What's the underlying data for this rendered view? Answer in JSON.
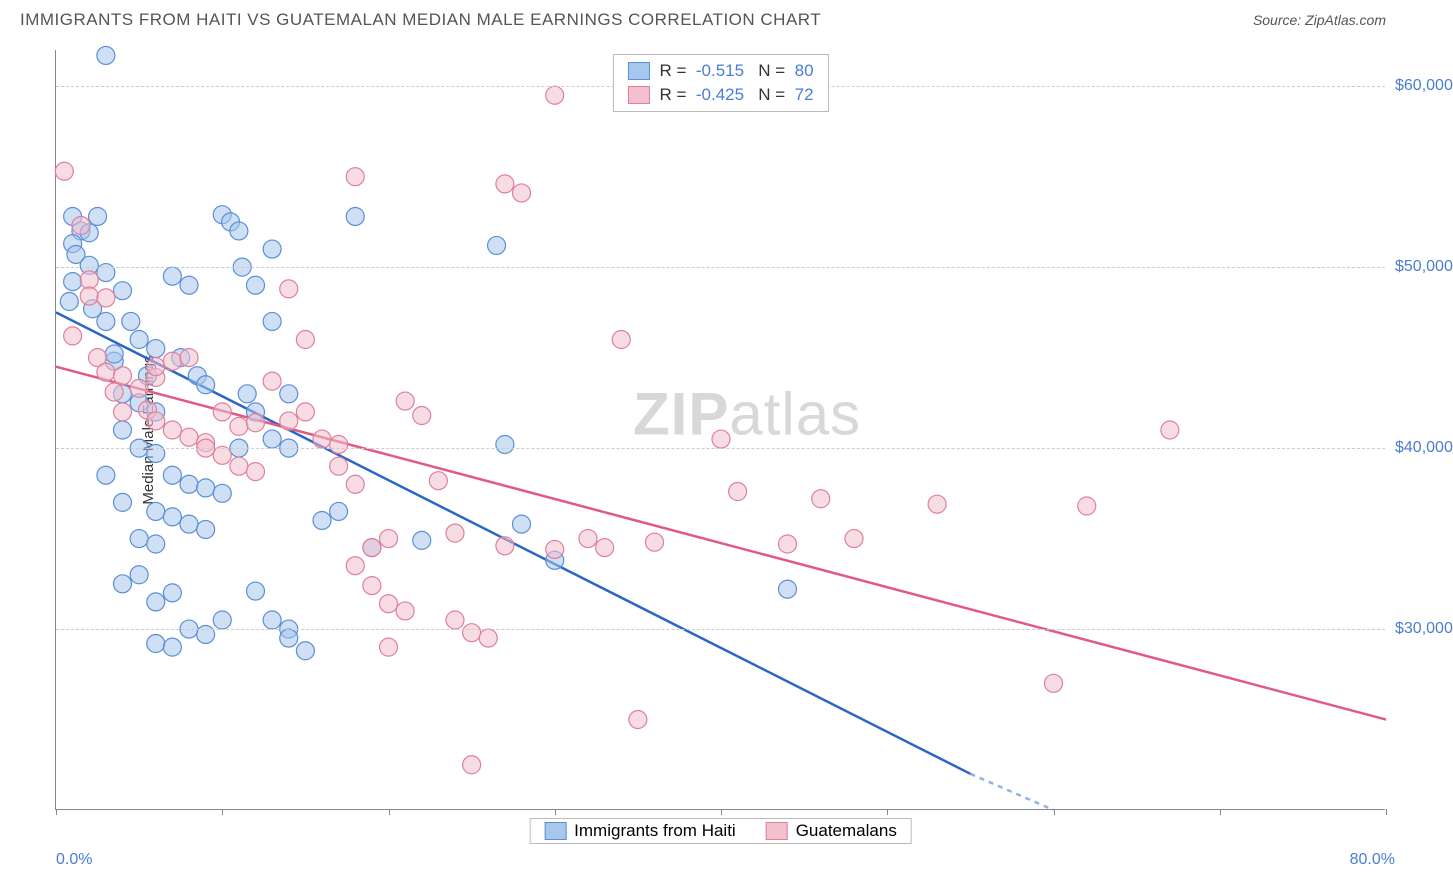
{
  "title": "IMMIGRANTS FROM HAITI VS GUATEMALAN MEDIAN MALE EARNINGS CORRELATION CHART",
  "source": "Source: ZipAtlas.com",
  "y_axis_label": "Median Male Earnings",
  "watermark": {
    "part1": "ZIP",
    "part2": "atlas"
  },
  "chart": {
    "type": "scatter",
    "xlim": [
      0,
      80
    ],
    "ylim": [
      20000,
      62000
    ],
    "x_min_label": "0.0%",
    "x_max_label": "80.0%",
    "y_ticks": [
      30000,
      40000,
      50000,
      60000
    ],
    "y_tick_labels": [
      "$30,000",
      "$40,000",
      "$50,000",
      "$60,000"
    ],
    "x_tick_positions": [
      0,
      10,
      20,
      30,
      40,
      50,
      60,
      70,
      80
    ],
    "background_color": "#ffffff",
    "grid_color": "#cccccc",
    "axis_color": "#888888",
    "marker_radius": 9,
    "marker_opacity": 0.55,
    "series": [
      {
        "name": "Immigrants from Haiti",
        "color_fill": "#a8c7ec",
        "color_stroke": "#5a8fd6",
        "r_value": "-0.515",
        "n_value": "80",
        "regression": {
          "x1": 0,
          "y1": 47500,
          "x2": 55,
          "y2": 22000,
          "x2_dash": 60,
          "y2_dash": 20000,
          "color": "#2c66c4",
          "width": 2.5
        },
        "points": [
          [
            1,
            52800
          ],
          [
            1.5,
            52000
          ],
          [
            1,
            51300
          ],
          [
            2,
            51900
          ],
          [
            1.2,
            50700
          ],
          [
            2.5,
            52800
          ],
          [
            0.8,
            48100
          ],
          [
            3,
            61700
          ],
          [
            2,
            50100
          ],
          [
            1,
            49200
          ],
          [
            2.2,
            47700
          ],
          [
            3,
            49700
          ],
          [
            4,
            48700
          ],
          [
            3.5,
            44800
          ],
          [
            4.5,
            47000
          ],
          [
            5,
            46000
          ],
          [
            5.5,
            44000
          ],
          [
            6,
            45500
          ],
          [
            4,
            43000
          ],
          [
            5,
            42500
          ],
          [
            6,
            42000
          ],
          [
            3,
            47000
          ],
          [
            3.5,
            45200
          ],
          [
            7,
            49500
          ],
          [
            8,
            49000
          ],
          [
            7.5,
            45000
          ],
          [
            8.5,
            44000
          ],
          [
            9,
            43500
          ],
          [
            10,
            52900
          ],
          [
            10.5,
            52500
          ],
          [
            11,
            52000
          ],
          [
            11.2,
            50000
          ],
          [
            12,
            49000
          ],
          [
            13,
            51000
          ],
          [
            11.5,
            43000
          ],
          [
            13,
            47000
          ],
          [
            14,
            43000
          ],
          [
            12,
            42000
          ],
          [
            13,
            40500
          ],
          [
            14,
            40000
          ],
          [
            4,
            41000
          ],
          [
            5,
            40000
          ],
          [
            6,
            39700
          ],
          [
            7,
            38500
          ],
          [
            8,
            38000
          ],
          [
            9,
            37800
          ],
          [
            10,
            37500
          ],
          [
            11,
            40000
          ],
          [
            6,
            36500
          ],
          [
            7,
            36200
          ],
          [
            8,
            35800
          ],
          [
            9,
            35500
          ],
          [
            5,
            35000
          ],
          [
            6,
            34700
          ],
          [
            4,
            37000
          ],
          [
            3,
            38500
          ],
          [
            6,
            31500
          ],
          [
            7,
            32000
          ],
          [
            8,
            30000
          ],
          [
            9,
            29700
          ],
          [
            10,
            30500
          ],
          [
            4,
            32500
          ],
          [
            5,
            33000
          ],
          [
            6,
            29200
          ],
          [
            7,
            29000
          ],
          [
            12,
            32100
          ],
          [
            13,
            30500
          ],
          [
            14,
            30000
          ],
          [
            14,
            29500
          ],
          [
            15,
            28800
          ],
          [
            16,
            36000
          ],
          [
            17,
            36500
          ],
          [
            18,
            52800
          ],
          [
            19,
            34500
          ],
          [
            22,
            34900
          ],
          [
            26.5,
            51200
          ],
          [
            27,
            40200
          ],
          [
            28,
            35800
          ],
          [
            30,
            33800
          ],
          [
            44,
            32200
          ]
        ]
      },
      {
        "name": "Guatemalans",
        "color_fill": "#f3c0ce",
        "color_stroke": "#e07f9c",
        "r_value": "-0.425",
        "n_value": "72",
        "regression": {
          "x1": 0,
          "y1": 44500,
          "x2": 80,
          "y2": 25000,
          "color": "#e05a84",
          "width": 2.5
        },
        "points": [
          [
            0.5,
            55300
          ],
          [
            1.5,
            52300
          ],
          [
            2,
            49300
          ],
          [
            2,
            48400
          ],
          [
            3,
            48300
          ],
          [
            1,
            46200
          ],
          [
            2.5,
            45000
          ],
          [
            3,
            44200
          ],
          [
            4,
            44000
          ],
          [
            3.5,
            43100
          ],
          [
            5,
            43300
          ],
          [
            6,
            43900
          ],
          [
            5.5,
            42100
          ],
          [
            4,
            42000
          ],
          [
            6,
            44500
          ],
          [
            7,
            44800
          ],
          [
            8,
            45000
          ],
          [
            6,
            41500
          ],
          [
            7,
            41000
          ],
          [
            8,
            40600
          ],
          [
            9,
            40300
          ],
          [
            10,
            42000
          ],
          [
            11,
            41200
          ],
          [
            12,
            41400
          ],
          [
            9,
            40000
          ],
          [
            10,
            39600
          ],
          [
            11,
            39000
          ],
          [
            12,
            38700
          ],
          [
            13,
            43700
          ],
          [
            14,
            41500
          ],
          [
            14,
            48800
          ],
          [
            15,
            42000
          ],
          [
            15,
            46000
          ],
          [
            16,
            40500
          ],
          [
            17,
            39000
          ],
          [
            17,
            40200
          ],
          [
            18,
            38000
          ],
          [
            18,
            55000
          ],
          [
            19,
            34500
          ],
          [
            20,
            35000
          ],
          [
            18,
            33500
          ],
          [
            19,
            32400
          ],
          [
            20,
            31400
          ],
          [
            21,
            31000
          ],
          [
            21,
            42600
          ],
          [
            22,
            41800
          ],
          [
            23,
            38200
          ],
          [
            24,
            35300
          ],
          [
            24,
            30500
          ],
          [
            25,
            29800
          ],
          [
            26,
            29500
          ],
          [
            27,
            34600
          ],
          [
            27,
            54600
          ],
          [
            28,
            54100
          ],
          [
            30,
            34400
          ],
          [
            30,
            59500
          ],
          [
            32,
            35000
          ],
          [
            33,
            34500
          ],
          [
            34,
            46000
          ],
          [
            35,
            25000
          ],
          [
            36,
            34800
          ],
          [
            40,
            40500
          ],
          [
            41,
            37600
          ],
          [
            44,
            34700
          ],
          [
            46,
            37200
          ],
          [
            48,
            35000
          ],
          [
            60,
            27000
          ],
          [
            62,
            36800
          ],
          [
            67,
            41000
          ],
          [
            53,
            36900
          ],
          [
            25,
            22500
          ],
          [
            20,
            29000
          ]
        ]
      }
    ]
  },
  "legend_top_label_r": "R =",
  "legend_top_label_n": "N ="
}
